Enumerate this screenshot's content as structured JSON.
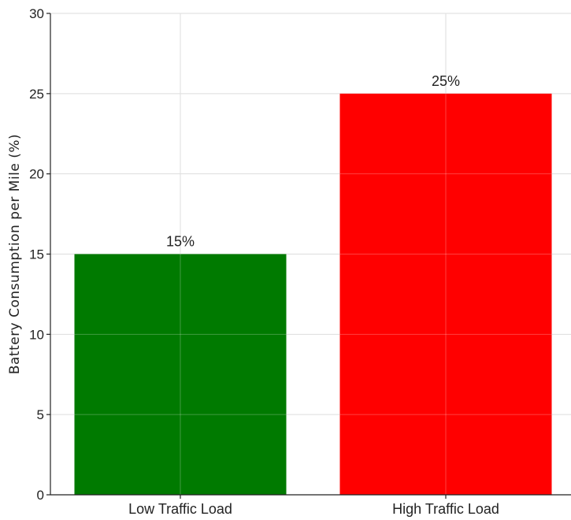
{
  "chart_data": {
    "type": "bar",
    "categories": [
      "Low Traffic Load",
      "High Traffic Load"
    ],
    "values": [
      15,
      25
    ],
    "data_labels": [
      "15%",
      "25%"
    ],
    "bar_colors": [
      "#007a00",
      "#ff0000"
    ],
    "title": "",
    "xlabel": "",
    "ylabel": "Battery Consumption per Mile (%)",
    "ylim": [
      0,
      30
    ],
    "yticks": [
      0,
      5,
      10,
      15,
      20,
      25,
      30
    ],
    "grid": true
  }
}
